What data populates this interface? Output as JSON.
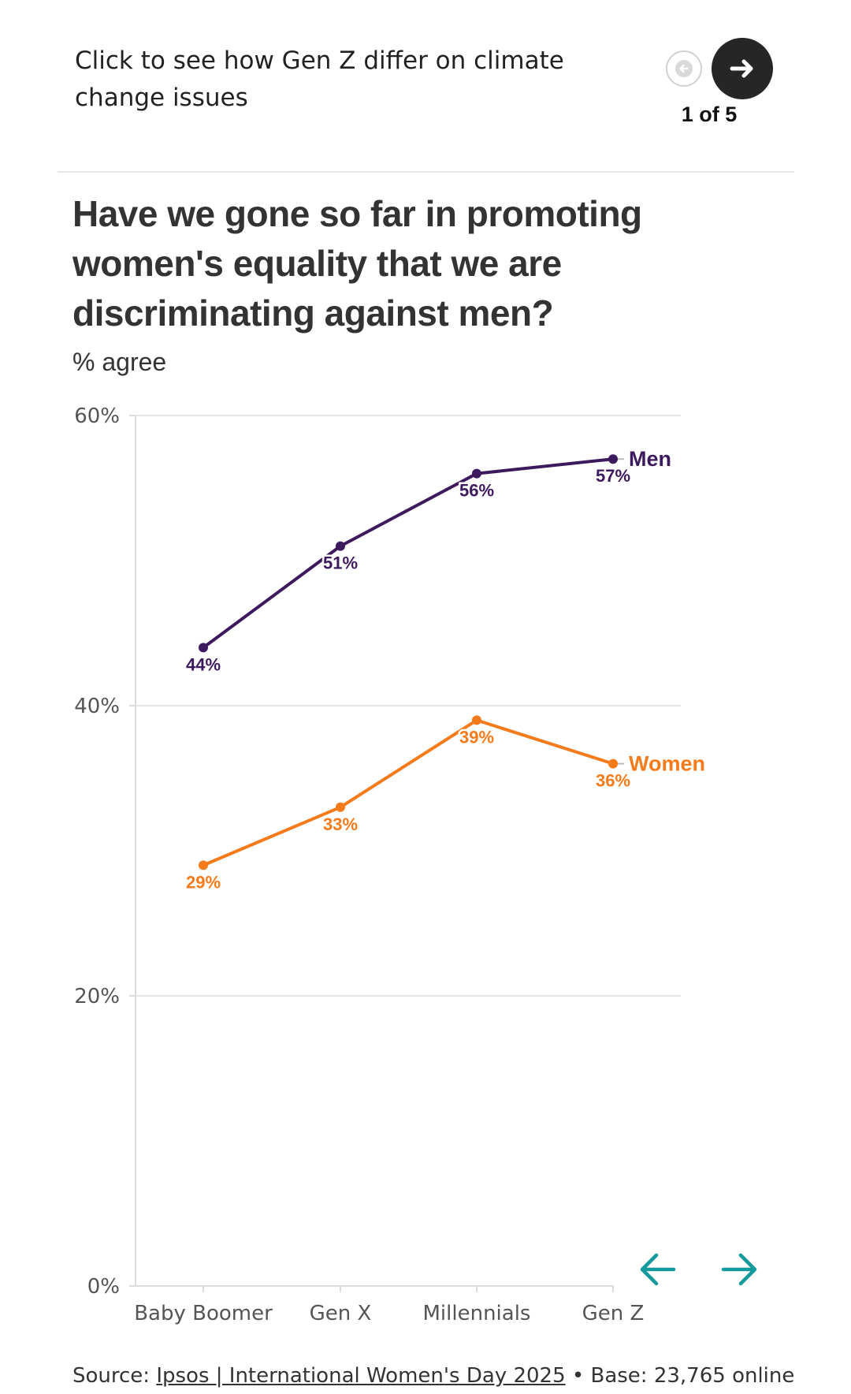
{
  "header": {
    "prompt": "Click to see how Gen Z differ on climate change issues",
    "counter": "1 of 5"
  },
  "colors": {
    "men": "#3d1a5e",
    "women": "#f57a1a",
    "nav_teal": "#149a9a",
    "grid": "#e6e6e6"
  },
  "icons": {
    "prev": "arrow-left-icon",
    "next": "arrow-right-icon"
  },
  "chart_data": {
    "type": "line",
    "title": "Have we gone so far in promoting women's equality that we are discriminating against men?",
    "subtitle": "% agree",
    "categories": [
      "Baby Boomer",
      "Gen X",
      "Millennials",
      "Gen Z"
    ],
    "series": [
      {
        "name": "Men",
        "values": [
          44,
          51,
          56,
          57
        ],
        "labels": [
          "44%",
          "51%",
          "56%",
          "57%"
        ]
      },
      {
        "name": "Women",
        "values": [
          29,
          33,
          39,
          36
        ],
        "labels": [
          "29%",
          "33%",
          "39%",
          "36%"
        ]
      }
    ],
    "ylim": [
      0,
      60
    ],
    "yticks": [
      0,
      20,
      40,
      60
    ],
    "ytick_labels": [
      "0%",
      "20%",
      "40%",
      "60%"
    ],
    "grid": true,
    "legend": "inline-end-labels"
  },
  "footer": {
    "source_prefix": "Source: ",
    "source_link": "Ipsos | International Women's Day 2025",
    "source_suffix": " • Base: 23,765 online"
  }
}
